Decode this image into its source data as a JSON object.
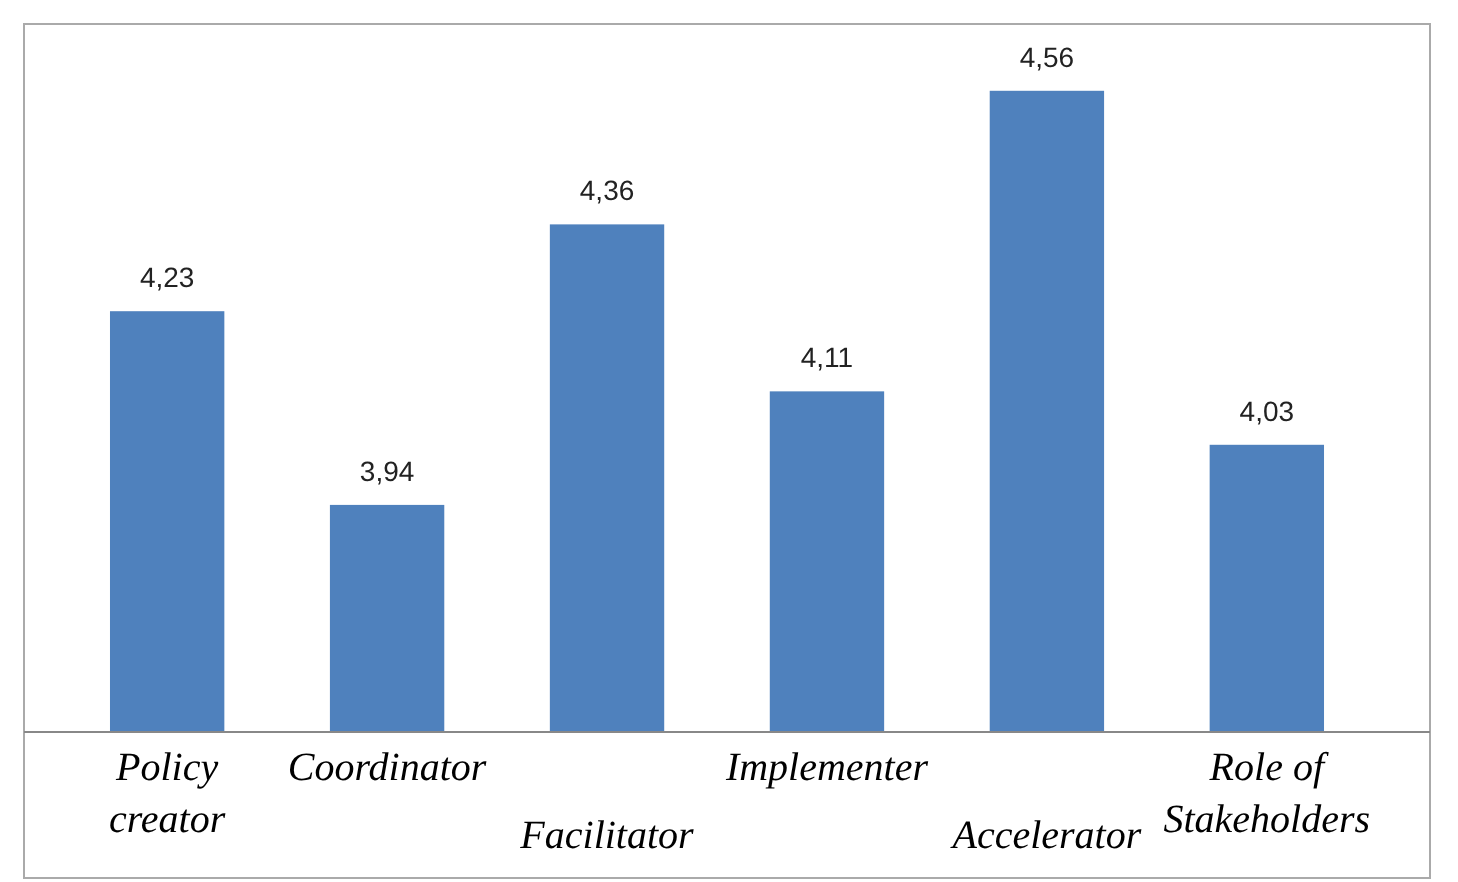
{
  "chart_data": {
    "type": "bar",
    "categories": [
      "Policy creator",
      "Coordinator",
      "Facilitator",
      "Implementer",
      "Accelerator",
      "Role of Stakeholders"
    ],
    "values": [
      4.23,
      3.94,
      4.36,
      4.11,
      4.56,
      4.03
    ],
    "value_labels": [
      "4,23",
      "3,94",
      "4,36",
      "4,11",
      "4,56",
      "4,03"
    ],
    "color": "#4f81bd",
    "ylim": [
      3.6,
      4.66
    ],
    "tick_labels": "x"
  }
}
